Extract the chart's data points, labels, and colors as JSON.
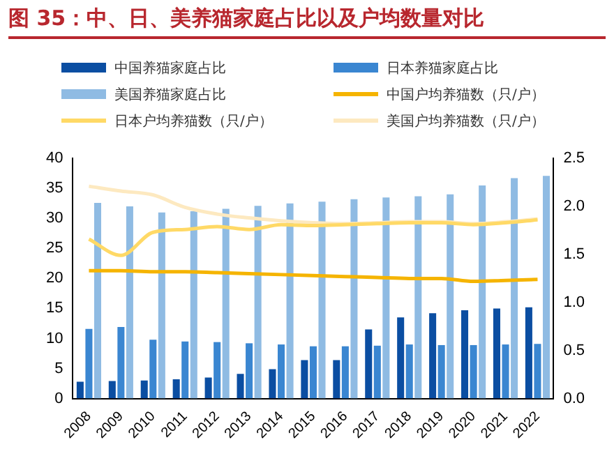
{
  "chart_data": {
    "type": "bar",
    "title": "图 35：中、日、美养猫家庭占比以及户均数量对比",
    "categories": [
      "2008",
      "2009",
      "2010",
      "2011",
      "2012",
      "2013",
      "2014",
      "2015",
      "2016",
      "2017",
      "2018",
      "2019",
      "2020",
      "2021",
      "2022"
    ],
    "series": [
      {
        "name": "中国养猫家庭占比",
        "color": "#0b4ea2",
        "values": [
          2.8,
          2.9,
          3.0,
          3.2,
          3.5,
          4.1,
          4.9,
          6.4,
          6.4,
          11.5,
          13.5,
          14.2,
          14.7,
          15.0,
          15.2
        ]
      },
      {
        "name": "日本养猫家庭占比",
        "color": "#3a86d1",
        "values": [
          11.6,
          11.9,
          9.8,
          9.5,
          9.4,
          9.2,
          9.0,
          8.7,
          8.7,
          8.8,
          9.0,
          8.9,
          8.9,
          9.0,
          9.1
        ]
      },
      {
        "name": "美国养猫家庭占比",
        "color": "#8fbbe3",
        "values": [
          32.6,
          32.0,
          31.0,
          31.2,
          31.6,
          32.1,
          32.5,
          32.8,
          33.2,
          33.5,
          33.7,
          34.0,
          35.5,
          36.7,
          37.1
        ]
      },
      {
        "name": "中国户均养猫数（只/户）",
        "type": "line",
        "axis": "y2",
        "color": "#f5b400",
        "values": [
          1.33,
          1.33,
          1.32,
          1.32,
          1.31,
          1.3,
          1.29,
          1.28,
          1.27,
          1.26,
          1.25,
          1.25,
          1.22,
          1.23,
          1.24
        ]
      },
      {
        "name": "日本户均养猫数（只/户）",
        "type": "line",
        "axis": "y2",
        "color": "#ffd966",
        "values": [
          1.66,
          1.49,
          1.73,
          1.76,
          1.79,
          1.76,
          1.81,
          1.8,
          1.81,
          1.82,
          1.83,
          1.83,
          1.81,
          1.83,
          1.86
        ]
      },
      {
        "name": "美国户均养猫数（只/户）",
        "type": "line",
        "axis": "y2",
        "color": "#fde9c0",
        "values": [
          2.21,
          2.16,
          2.12,
          1.99,
          1.92,
          1.88,
          1.85,
          1.83,
          1.82,
          1.83,
          1.84,
          1.84,
          1.82,
          1.84,
          1.87
        ]
      }
    ],
    "ylim": [
      0,
      40
    ],
    "yticks": [
      0,
      5,
      10,
      15,
      20,
      25,
      30,
      35,
      40
    ],
    "y2lim": [
      0,
      2.5
    ],
    "y2ticks": [
      {
        "value": 0,
        "label": "0.0"
      },
      {
        "value": 0.5,
        "label": "0.5"
      },
      {
        "value": 1,
        "label": "1.0"
      },
      {
        "value": 1.5,
        "label": "1.5"
      },
      {
        "value": 2,
        "label": "2.0"
      },
      {
        "value": 2.5,
        "label": "2.5"
      }
    ],
    "grid": false,
    "legend": "top",
    "marker": "none"
  }
}
